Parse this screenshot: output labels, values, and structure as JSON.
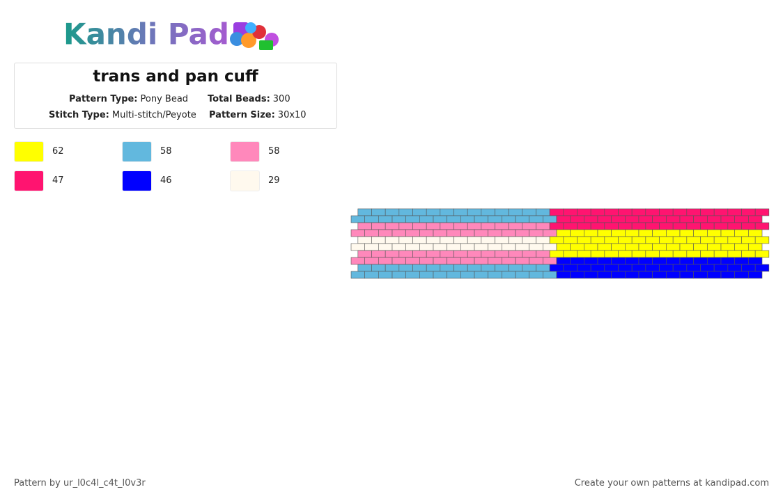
{
  "logo": "Kandi Pad",
  "title": "trans and pan cuff",
  "info": [
    {
      "label": "Pattern Type:",
      "value": "Pony Bead"
    },
    {
      "label": "Total Beads:",
      "value": "300"
    },
    {
      "label": "Stitch Type:",
      "value": "Multi-stitch/Peyote"
    },
    {
      "label": "Pattern Size:",
      "value": "30x10"
    }
  ],
  "colors": [
    {
      "color": "#ffff00",
      "count": 62
    },
    {
      "color": "#62b8de",
      "count": 58
    },
    {
      "color": "#ff88bb",
      "count": 58
    },
    {
      "color": "#ff1470",
      "count": 47
    },
    {
      "color": "#0000ff",
      "count": 46
    },
    {
      "color": "#fff9ee",
      "count": 29
    }
  ],
  "pattern": {
    "rows": [
      [
        1,
        1,
        1,
        1,
        1,
        1,
        1,
        1,
        1,
        1,
        1,
        1,
        1,
        1,
        3,
        3,
        3,
        3,
        3,
        3,
        3,
        3,
        3,
        3,
        3,
        3,
        3,
        3,
        3,
        3
      ],
      [
        1,
        1,
        1,
        1,
        1,
        1,
        1,
        1,
        1,
        1,
        1,
        1,
        1,
        1,
        1,
        3,
        3,
        3,
        3,
        3,
        3,
        3,
        3,
        3,
        3,
        3,
        3,
        3,
        3,
        3
      ],
      [
        2,
        2,
        2,
        2,
        2,
        2,
        2,
        2,
        2,
        2,
        2,
        2,
        2,
        2,
        3,
        3,
        3,
        3,
        3,
        3,
        3,
        3,
        3,
        3,
        3,
        3,
        3,
        3,
        3,
        3
      ],
      [
        2,
        2,
        2,
        2,
        2,
        2,
        2,
        2,
        2,
        2,
        2,
        2,
        2,
        2,
        2,
        0,
        0,
        0,
        0,
        0,
        0,
        0,
        0,
        0,
        0,
        0,
        0,
        0,
        0,
        0
      ],
      [
        5,
        5,
        5,
        5,
        5,
        5,
        5,
        5,
        5,
        5,
        5,
        5,
        5,
        5,
        0,
        0,
        0,
        0,
        0,
        0,
        0,
        0,
        0,
        0,
        0,
        0,
        0,
        0,
        0,
        0
      ],
      [
        5,
        5,
        5,
        5,
        5,
        5,
        5,
        5,
        5,
        5,
        5,
        5,
        5,
        5,
        5,
        0,
        0,
        0,
        0,
        0,
        0,
        0,
        0,
        0,
        0,
        0,
        0,
        0,
        0,
        0
      ],
      [
        2,
        2,
        2,
        2,
        2,
        2,
        2,
        2,
        2,
        2,
        2,
        2,
        2,
        2,
        0,
        0,
        0,
        0,
        0,
        0,
        0,
        0,
        0,
        0,
        0,
        0,
        0,
        0,
        0,
        0
      ],
      [
        2,
        2,
        2,
        2,
        2,
        2,
        2,
        2,
        2,
        2,
        2,
        2,
        2,
        2,
        2,
        4,
        4,
        4,
        4,
        4,
        4,
        4,
        4,
        4,
        4,
        4,
        4,
        4,
        4,
        4
      ],
      [
        1,
        1,
        1,
        1,
        1,
        1,
        1,
        1,
        1,
        1,
        1,
        1,
        1,
        1,
        4,
        4,
        4,
        4,
        4,
        4,
        4,
        4,
        4,
        4,
        4,
        4,
        4,
        4,
        4,
        4
      ],
      [
        1,
        1,
        1,
        1,
        1,
        1,
        1,
        1,
        1,
        1,
        1,
        1,
        1,
        1,
        1,
        4,
        4,
        4,
        4,
        4,
        4,
        4,
        4,
        4,
        4,
        4,
        4,
        4,
        4,
        4
      ]
    ]
  },
  "footer": {
    "author": "Pattern by ur_l0c4l_c4t_l0v3r",
    "credit": "Create your own patterns at kandipad.com"
  }
}
